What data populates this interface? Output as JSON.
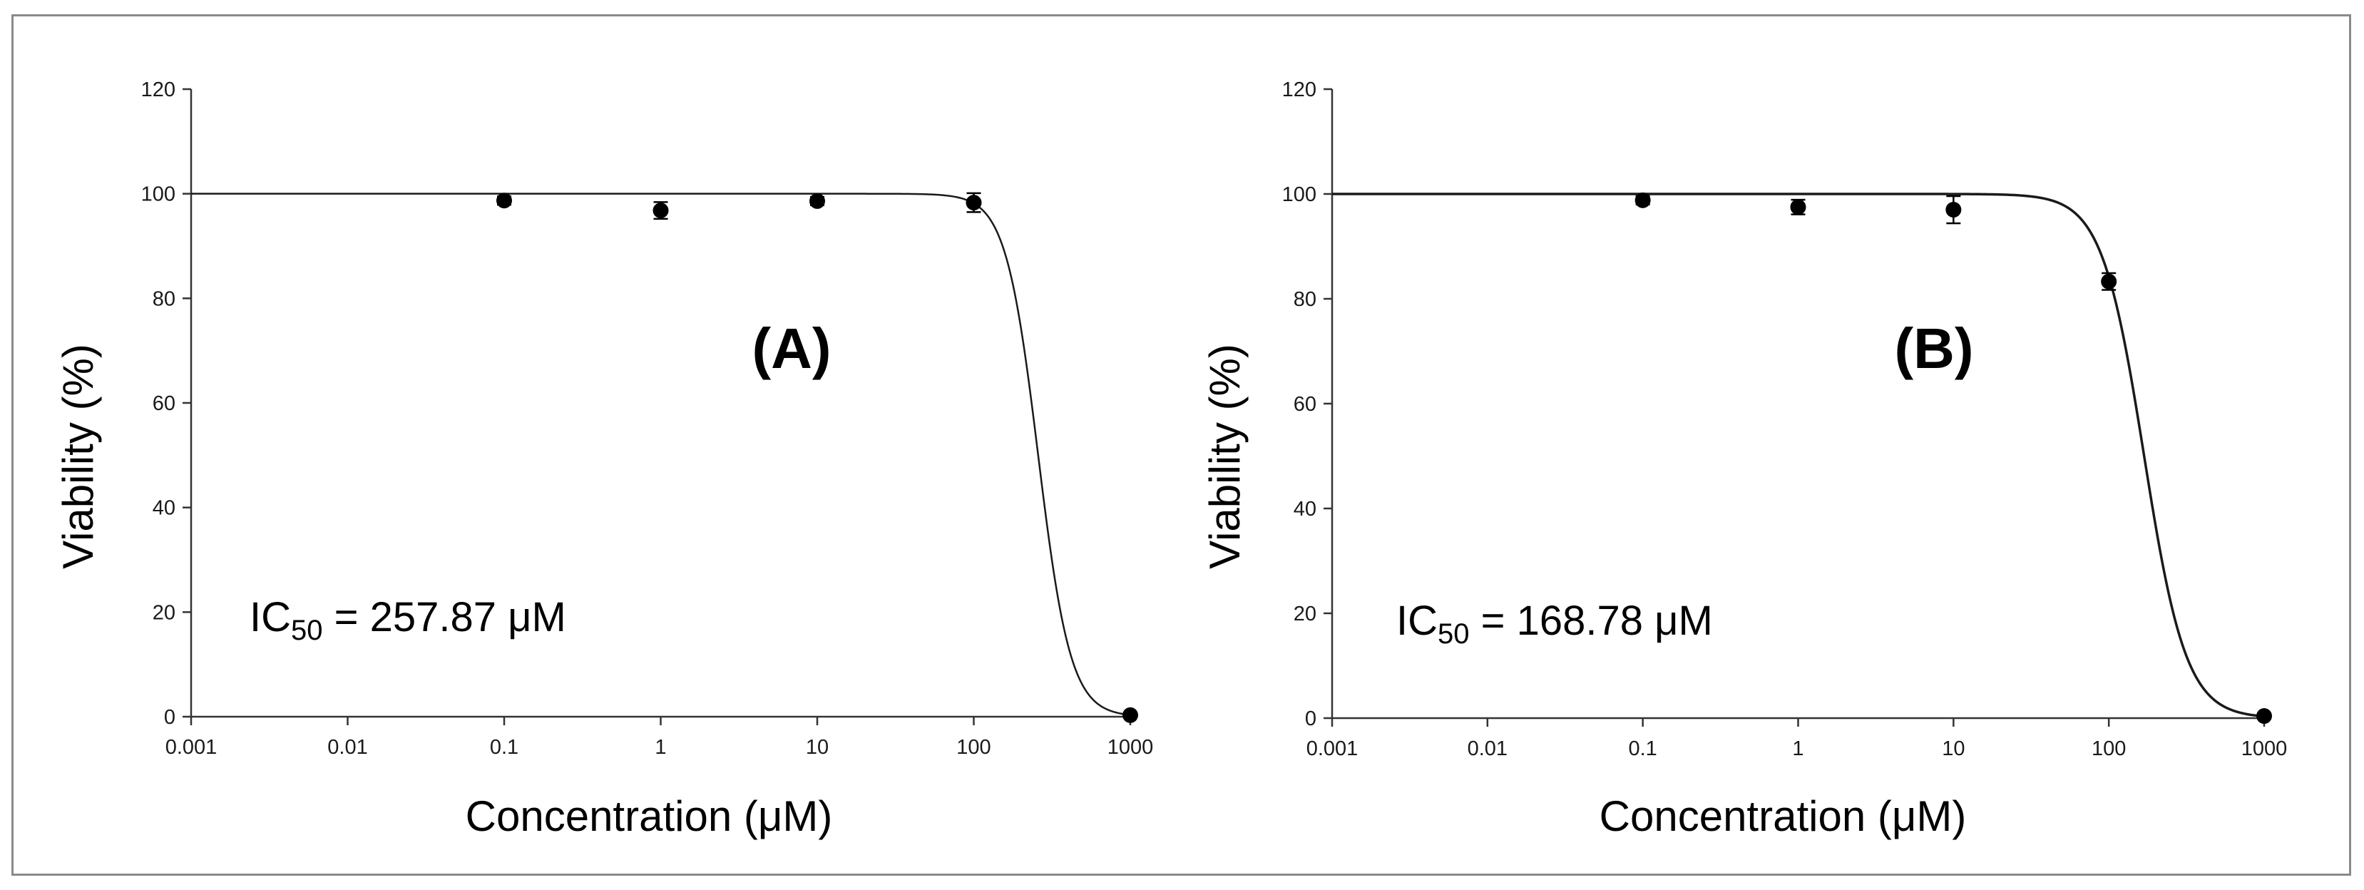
{
  "chart_data": [
    {
      "type": "scatter",
      "panel_label": "(A)",
      "xlabel": "Concentration (μM)",
      "ylabel": "Viability (%)",
      "xscale": "log",
      "xlim": [
        0.001,
        1000
      ],
      "ylim": [
        0,
        120
      ],
      "xticks": [
        "0.001",
        "0.01",
        "0.1",
        "1",
        "10",
        "100",
        "1000"
      ],
      "yticks": [
        "0",
        "20",
        "40",
        "60",
        "80",
        "100",
        "120"
      ],
      "annotation": {
        "prefix": "IC",
        "subscript": "50",
        "suffix": " = 257.87 μM"
      },
      "ic50": 257.87,
      "hill_slope": 4.2,
      "series": [
        {
          "x": [
            0.1,
            1,
            10,
            100,
            1000
          ],
          "y": [
            98.7,
            96.8,
            98.6,
            98.3,
            0.3
          ],
          "err": [
            0.8,
            1.6,
            0.8,
            1.8,
            0.4
          ]
        }
      ],
      "grid": false,
      "legend": "none"
    },
    {
      "type": "scatter",
      "panel_label": "(B)",
      "xlabel": "Concentration (μM)",
      "ylabel": "Viability (%)",
      "xscale": "log",
      "xlim": [
        0.001,
        1000
      ],
      "ylim": [
        0,
        120
      ],
      "xticks": [
        "0.001",
        "0.01",
        "0.1",
        "1",
        "10",
        "100",
        "1000"
      ],
      "yticks": [
        "0",
        "20",
        "40",
        "60",
        "80",
        "100",
        "120"
      ],
      "annotation": {
        "prefix": "IC",
        "subscript": "50",
        "suffix": " = 168.78 μM"
      },
      "ic50": 168.78,
      "hill_slope": 3.2,
      "series": [
        {
          "x": [
            0.1,
            1,
            10,
            100,
            1000
          ],
          "y": [
            98.8,
            97.5,
            97.0,
            83.3,
            0.4
          ],
          "err": [
            0.8,
            1.4,
            2.6,
            1.6,
            0.5
          ]
        }
      ],
      "grid": false,
      "legend": "none"
    }
  ],
  "colors": {
    "marker": "#000000",
    "axis": "#333333",
    "curve": "#1a1a1a",
    "frame": "#8a8a8a"
  }
}
